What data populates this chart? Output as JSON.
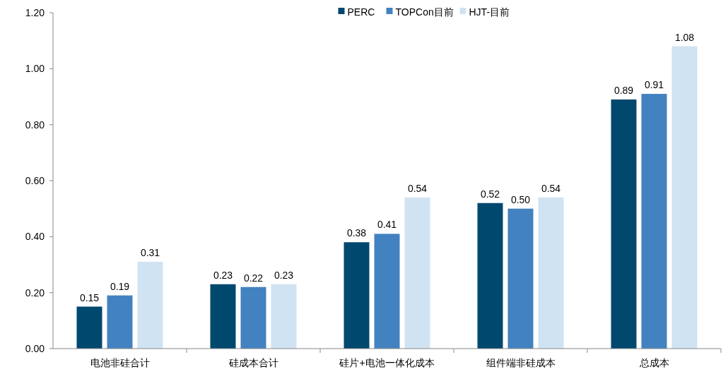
{
  "chart_data": {
    "type": "bar",
    "categories": [
      "电池非硅合计",
      "硅成本合计",
      "硅片+电池一体化成本",
      "组件端非硅成本",
      "总成本"
    ],
    "series": [
      {
        "name": "PERC",
        "color": "#00486e",
        "values": [
          0.15,
          0.23,
          0.38,
          0.52,
          0.89
        ],
        "value_labels": [
          "0.15",
          "0.23",
          "0.38",
          "0.52",
          "0.89"
        ]
      },
      {
        "name": "TOPCon目前",
        "color": "#4282c0",
        "values": [
          0.19,
          0.22,
          0.41,
          0.5,
          0.91
        ],
        "value_labels": [
          "0.19",
          "0.22",
          "0.41",
          "0.50",
          "0.91"
        ]
      },
      {
        "name": "HJT-目前",
        "color": "#d0e3f3",
        "values": [
          0.31,
          0.23,
          0.54,
          0.54,
          1.08
        ],
        "value_labels": [
          "0.31",
          "0.23",
          "0.54",
          "0.54",
          "1.08"
        ]
      }
    ],
    "ylim": [
      0,
      1.2
    ],
    "yticks": [
      {
        "value": 0,
        "label": "0.00"
      },
      {
        "value": 0.2,
        "label": "0.20"
      },
      {
        "value": 0.4,
        "label": "0.40"
      },
      {
        "value": 0.6,
        "label": "0.60"
      },
      {
        "value": 0.8,
        "label": "0.80"
      },
      {
        "value": 1,
        "label": "1.00"
      },
      {
        "value": 1.2,
        "label": "1.20"
      }
    ],
    "legend": "top",
    "grid": false
  }
}
